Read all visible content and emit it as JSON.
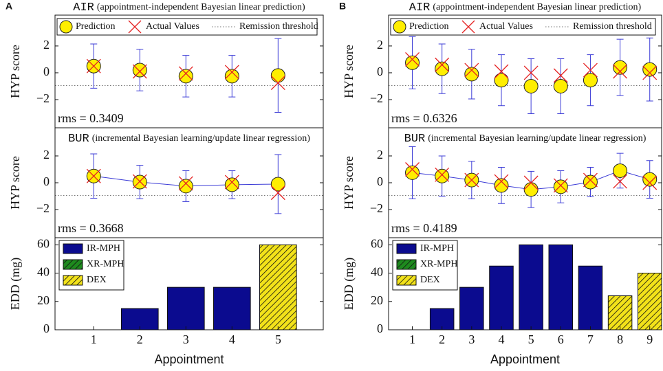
{
  "chart_data": [
    {
      "type": "errorbar",
      "panel": "A",
      "title_code": "AIR",
      "title": "(appointment-independent Bayesian linear prediction)",
      "ylabel": "HYP score",
      "legend": true,
      "x": [
        1,
        2,
        3,
        4,
        5
      ],
      "xlim": [
        0.16,
        5.98
      ],
      "ylim": [
        -4.1,
        4.3
      ],
      "yticks": [
        {
          "value": -2,
          "label": "−2"
        },
        0,
        2
      ],
      "series": [
        {
          "name": "Prediction",
          "marker": "circle",
          "color": "#ffee00",
          "error_color": "#3b3bd6",
          "values": [
            0.5,
            0.2,
            -0.25,
            -0.25,
            -0.2
          ],
          "errors": [
            1.65,
            1.55,
            1.55,
            1.55,
            2.75
          ]
        },
        {
          "name": "Actual Values",
          "marker": "cross",
          "color": "#e52222",
          "values": [
            0.5,
            0.1,
            -0.05,
            0.05,
            -0.75
          ]
        }
      ],
      "threshold": {
        "name": "Remission threshold",
        "value": -0.95
      },
      "annotation": "rms = 0.3409"
    },
    {
      "type": "errorbar",
      "title_code": "BUR",
      "title": "(incremental Bayesian learning/update linear regression)",
      "ylabel": "HYP score",
      "line": true,
      "x": [
        1,
        2,
        3,
        4,
        5
      ],
      "xlim": [
        0.16,
        5.98
      ],
      "ylim": [
        -4.1,
        4.1
      ],
      "yticks": [
        {
          "value": -2,
          "label": "−2"
        },
        0,
        2
      ],
      "series": [
        {
          "name": "Prediction",
          "marker": "circle",
          "color": "#ffee00",
          "error_color": "#3b3bd6",
          "values": [
            0.5,
            0.05,
            -0.25,
            -0.15,
            -0.1
          ],
          "errors": [
            1.65,
            1.25,
            1.15,
            1.05,
            2.2
          ]
        },
        {
          "name": "Actual Values",
          "marker": "cross",
          "color": "#e52222",
          "values": [
            0.5,
            0.1,
            -0.05,
            0.05,
            -0.75
          ]
        }
      ],
      "threshold": {
        "name": "Remission threshold",
        "value": -0.95
      },
      "annotation": "rms = 0.3668"
    },
    {
      "type": "bar",
      "stacked": true,
      "ylabel": "EDD (mg)",
      "xlabel": "Appointment",
      "x": [
        1,
        2,
        3,
        4,
        5
      ],
      "xticks": [
        1,
        2,
        3,
        4,
        5
      ],
      "xlim": [
        0.16,
        5.98
      ],
      "ylim": [
        0,
        65
      ],
      "yticks": [
        0,
        20,
        40,
        60
      ],
      "series": [
        {
          "name": "IR-MPH",
          "color": "#0b0b8f",
          "values": [
            0,
            15,
            30,
            30,
            0
          ]
        },
        {
          "name": "XR-MPH",
          "color": "#1e8a1e",
          "hatch": true,
          "values": [
            0,
            0,
            0,
            0,
            0
          ]
        },
        {
          "name": "DEX",
          "color": "#f2e21a",
          "hatch": true,
          "values": [
            0,
            0,
            0,
            0,
            60
          ]
        }
      ]
    },
    {
      "type": "errorbar",
      "panel": "B",
      "title_code": "AIR",
      "title": "(appointment-independent Bayesian linear prediction)",
      "ylabel": "HYP score",
      "legend": true,
      "x": [
        1,
        2,
        3,
        4,
        5,
        6,
        7,
        8,
        9
      ],
      "xlim": [
        0.2,
        9.4
      ],
      "ylim": [
        -4.1,
        4.3
      ],
      "yticks": [
        {
          "value": -2,
          "label": "−2"
        },
        0,
        2
      ],
      "series": [
        {
          "name": "Prediction",
          "marker": "circle",
          "color": "#ffee00",
          "error_color": "#3b3bd6",
          "values": [
            0.75,
            0.3,
            -0.1,
            -0.55,
            -1.0,
            -1.0,
            -0.55,
            0.4,
            0.25
          ],
          "errors": [
            1.95,
            1.85,
            1.85,
            1.9,
            2.05,
            2.05,
            1.9,
            2.1,
            2.35
          ]
        },
        {
          "name": "Actual Values",
          "marker": "cross",
          "color": "#e52222",
          "values": [
            1.0,
            0.6,
            0.2,
            0.1,
            0.0,
            -0.2,
            0.2,
            0.1,
            0.0
          ]
        }
      ],
      "threshold": {
        "name": "Remission threshold",
        "value": -0.95
      },
      "annotation": "rms = 0.6326"
    },
    {
      "type": "errorbar",
      "title_code": "BUR",
      "title": "(incremental Bayesian learning/update linear regression)",
      "ylabel": "HYP score",
      "line": true,
      "x": [
        1,
        2,
        3,
        4,
        5,
        6,
        7,
        8,
        9
      ],
      "xlim": [
        0.2,
        9.4
      ],
      "ylim": [
        -4.1,
        4.1
      ],
      "yticks": [
        {
          "value": -2,
          "label": "−2"
        },
        0,
        2
      ],
      "series": [
        {
          "name": "Prediction",
          "marker": "circle",
          "color": "#ffee00",
          "error_color": "#3b3bd6",
          "values": [
            0.75,
            0.5,
            0.2,
            -0.2,
            -0.5,
            -0.3,
            0.05,
            0.9,
            0.25
          ],
          "errors": [
            1.95,
            1.5,
            1.4,
            1.35,
            1.35,
            1.2,
            1.1,
            1.3,
            1.4
          ]
        },
        {
          "name": "Actual Values",
          "marker": "cross",
          "color": "#e52222",
          "values": [
            1.0,
            0.6,
            0.2,
            0.1,
            0.0,
            -0.2,
            0.2,
            0.1,
            0.0
          ]
        }
      ],
      "threshold": {
        "name": "Remission threshold",
        "value": -0.95
      },
      "annotation": "rms = 0.4189"
    },
    {
      "type": "bar",
      "stacked": true,
      "ylabel": "EDD (mg)",
      "xlabel": "Appointment",
      "x": [
        1,
        2,
        3,
        4,
        5,
        6,
        7,
        8,
        9
      ],
      "xticks": [
        1,
        2,
        3,
        4,
        5,
        6,
        7,
        8,
        9
      ],
      "xlim": [
        0.2,
        9.4
      ],
      "ylim": [
        0,
        65
      ],
      "yticks": [
        0,
        20,
        40,
        60
      ],
      "series": [
        {
          "name": "IR-MPH",
          "color": "#0b0b8f",
          "values": [
            0,
            15,
            30,
            45,
            60,
            60,
            45,
            0,
            0
          ]
        },
        {
          "name": "XR-MPH",
          "color": "#1e8a1e",
          "hatch": true,
          "values": [
            0,
            0,
            0,
            0,
            0,
            0,
            0,
            0,
            0
          ]
        },
        {
          "name": "DEX",
          "color": "#f2e21a",
          "hatch": true,
          "values": [
            0,
            0,
            0,
            0,
            0,
            0,
            0,
            24,
            40
          ]
        }
      ]
    }
  ]
}
